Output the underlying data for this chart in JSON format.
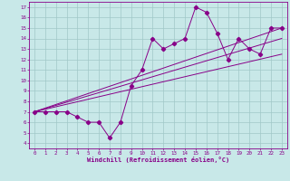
{
  "title": "",
  "xlabel": "Windchill (Refroidissement éolien,°C)",
  "bg_color": "#c8e8e8",
  "line_color": "#880088",
  "xlim": [
    -0.5,
    23.5
  ],
  "ylim": [
    3.5,
    17.5
  ],
  "xticks": [
    0,
    1,
    2,
    3,
    4,
    5,
    6,
    7,
    8,
    9,
    10,
    11,
    12,
    13,
    14,
    15,
    16,
    17,
    18,
    19,
    20,
    21,
    22,
    23
  ],
  "yticks": [
    4,
    5,
    6,
    7,
    8,
    9,
    10,
    11,
    12,
    13,
    14,
    15,
    16,
    17
  ],
  "line1_x": [
    0,
    1,
    2,
    3,
    4,
    5,
    6,
    7,
    8,
    9,
    10,
    11,
    12,
    13,
    14,
    15,
    16,
    17,
    18,
    19,
    20,
    21,
    22,
    23
  ],
  "line1_y": [
    7,
    7,
    7,
    7,
    6.5,
    6,
    6,
    4.5,
    6,
    9.5,
    11,
    14,
    13,
    13.5,
    14,
    17,
    16.5,
    14.5,
    12,
    14,
    13,
    12.5,
    15,
    15
  ],
  "line2_x": [
    0,
    23
  ],
  "line2_y": [
    7,
    15
  ],
  "line3_x": [
    0,
    23
  ],
  "line3_y": [
    7,
    12.5
  ],
  "line4_x": [
    0,
    23
  ],
  "line4_y": [
    7,
    14
  ],
  "grid_color": "#a0c8c8",
  "marker": "D",
  "markersize": 2.2,
  "linewidth": 0.7
}
